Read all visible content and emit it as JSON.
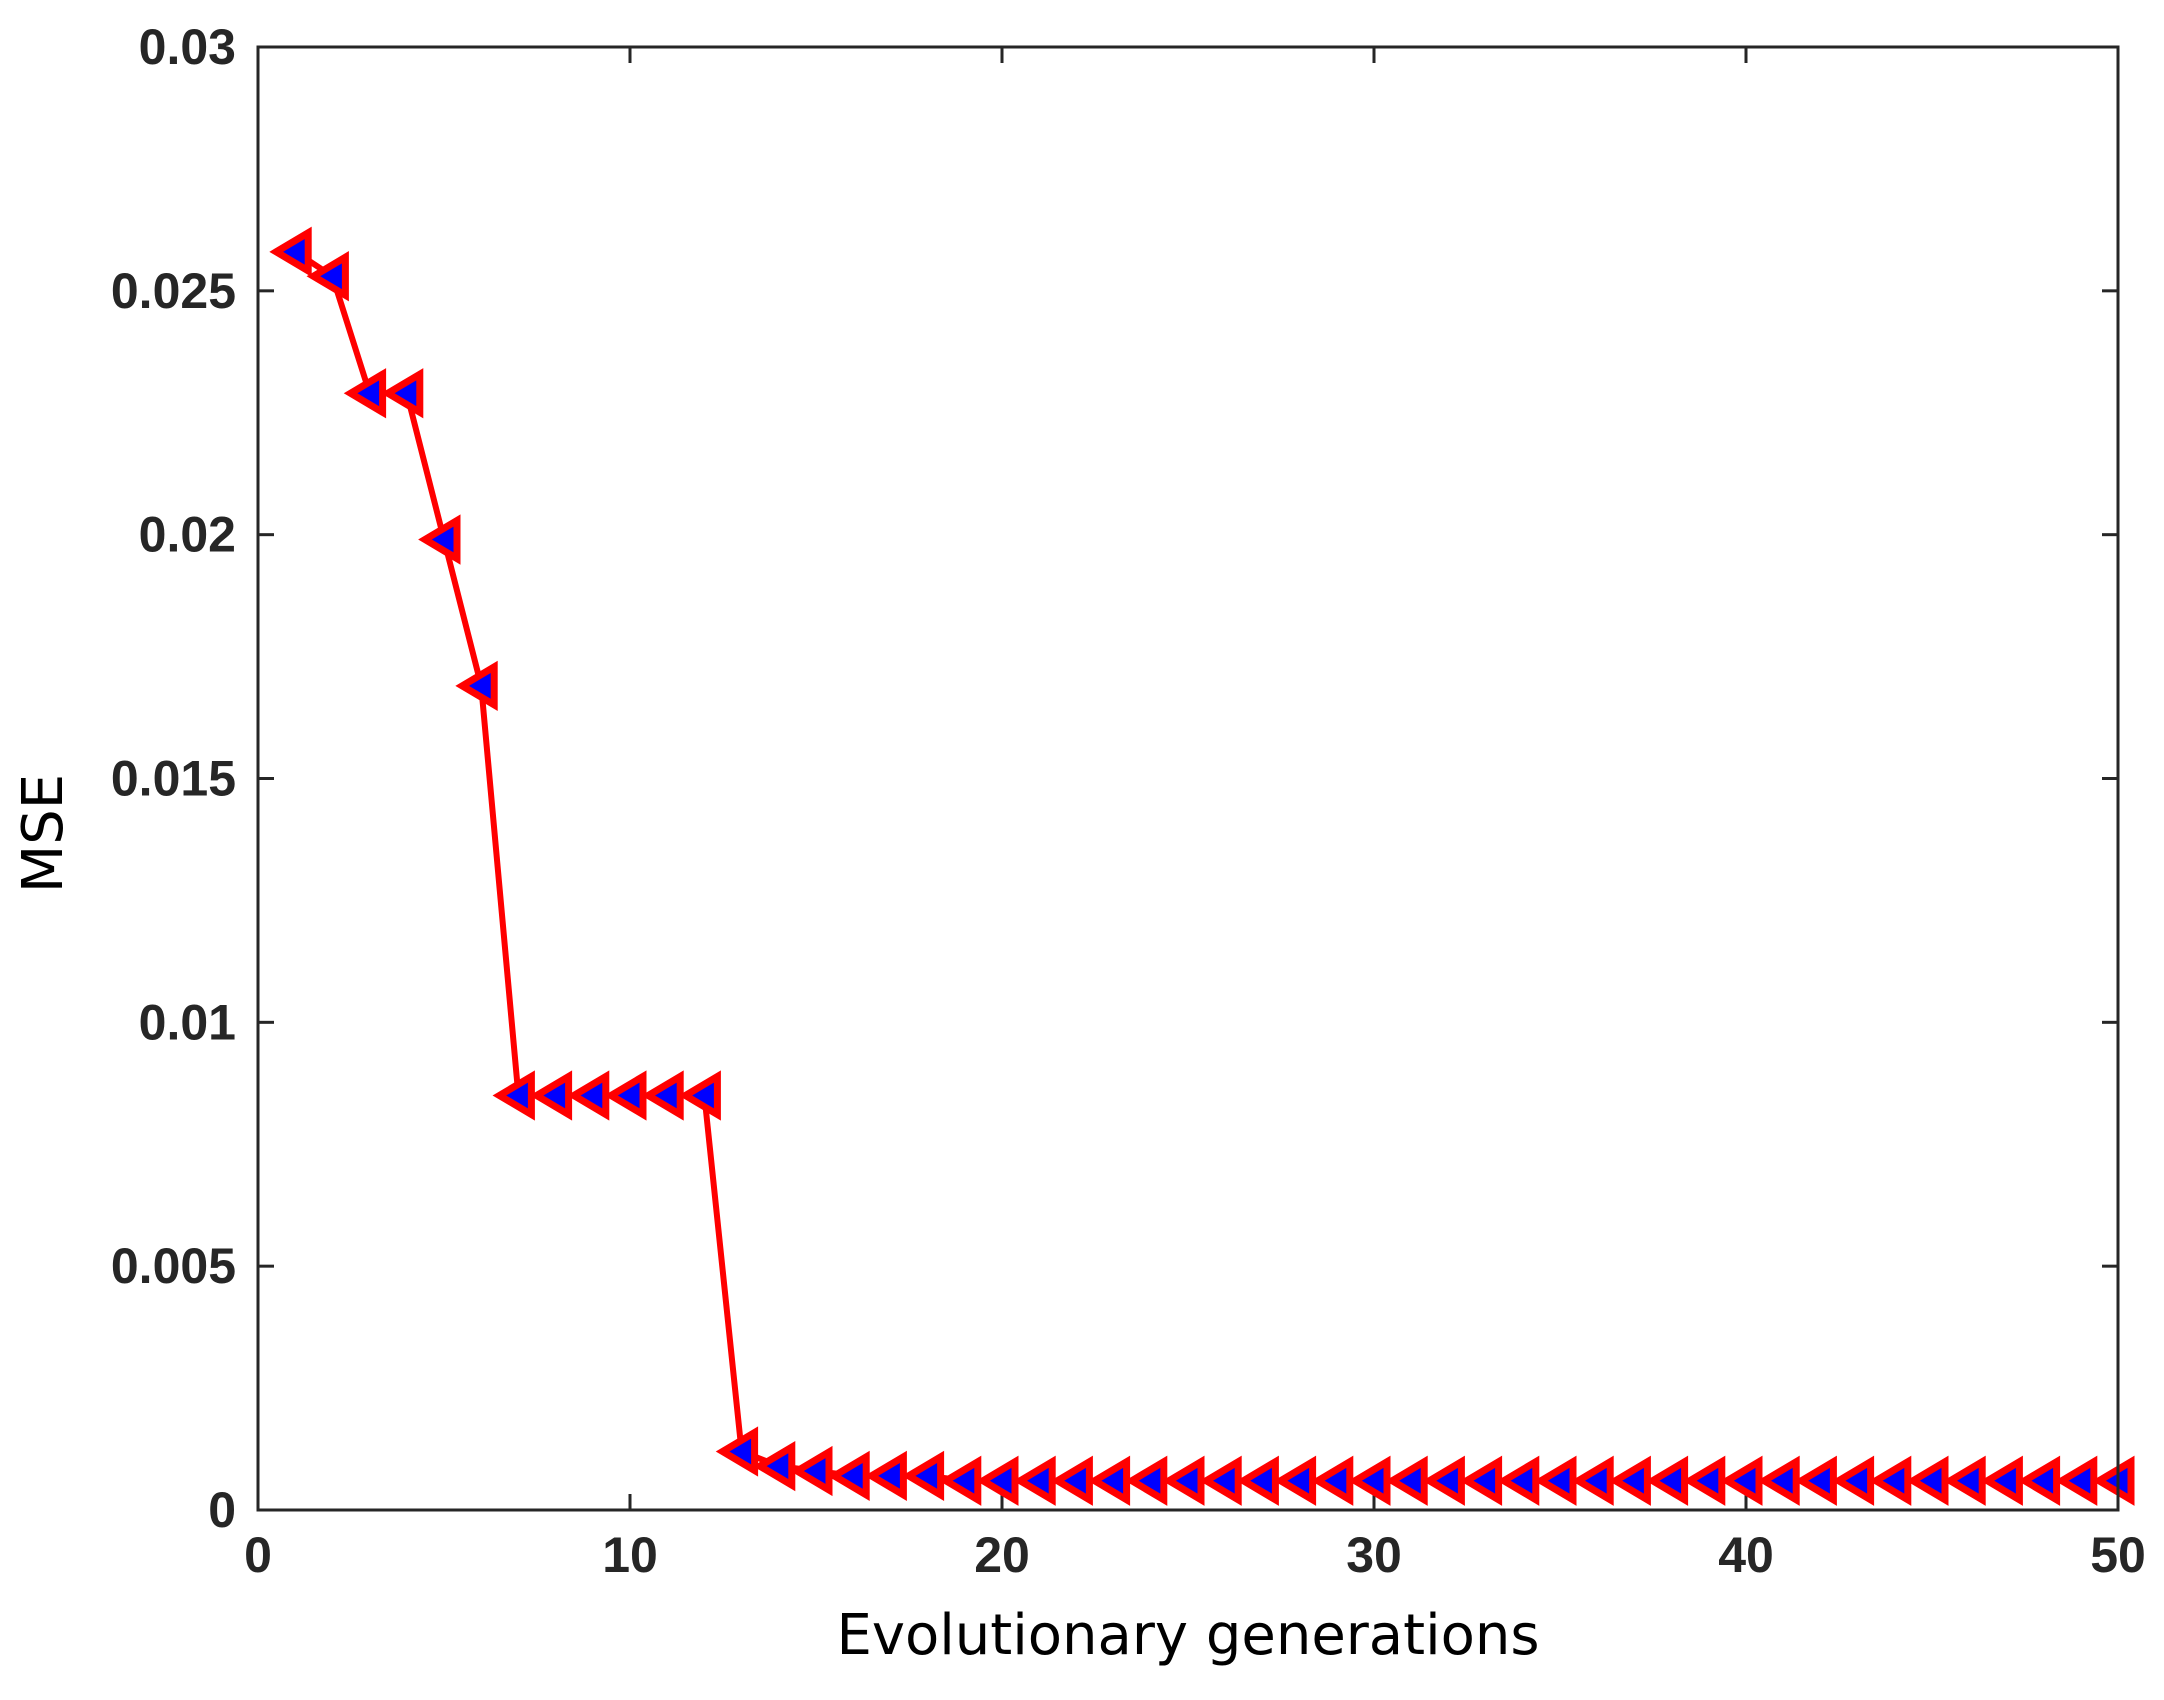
{
  "chart_data": {
    "type": "line",
    "title": "",
    "xlabel": "Evolutionary generations",
    "ylabel": "MSE",
    "xlim": [
      0,
      50
    ],
    "ylim": [
      0,
      0.03
    ],
    "x_ticks": [
      "0",
      "10",
      "20",
      "30",
      "40",
      "50"
    ],
    "y_ticks": [
      "0",
      "0.005",
      "0.01",
      "0.015",
      "0.02",
      "0.025",
      "0.03"
    ],
    "grid": false,
    "colors": {
      "line": "#ff0000",
      "marker_edge": "#ff0000",
      "marker_fill": "#0000ff",
      "axis": "#262626"
    },
    "marker": "triangle-left",
    "series": [
      {
        "x": [
          1,
          2,
          3,
          4,
          5,
          6,
          7,
          8,
          9,
          10,
          11,
          12,
          13,
          14,
          15,
          16,
          17,
          18,
          19,
          20,
          21,
          22,
          23,
          24,
          25,
          26,
          27,
          28,
          29,
          30,
          31,
          32,
          33,
          34,
          35,
          36,
          37,
          38,
          39,
          40,
          41,
          42,
          43,
          44,
          45,
          46,
          47,
          48,
          49,
          50
        ],
        "values": [
          0.0258,
          0.0253,
          0.0229,
          0.0229,
          0.0199,
          0.0169,
          0.0085,
          0.0085,
          0.0085,
          0.0085,
          0.0085,
          0.0085,
          0.0012,
          0.0009,
          0.0008,
          0.0007,
          0.0007,
          0.0007,
          0.0006,
          0.0006,
          0.0006,
          0.0006,
          0.0006,
          0.0006,
          0.0006,
          0.0006,
          0.0006,
          0.0006,
          0.0006,
          0.0006,
          0.0006,
          0.0006,
          0.0006,
          0.0006,
          0.0006,
          0.0006,
          0.0006,
          0.0006,
          0.0006,
          0.0006,
          0.0006,
          0.0006,
          0.0006,
          0.0006,
          0.0006,
          0.0006,
          0.0006,
          0.0006,
          0.0006,
          0.0006
        ]
      }
    ]
  }
}
